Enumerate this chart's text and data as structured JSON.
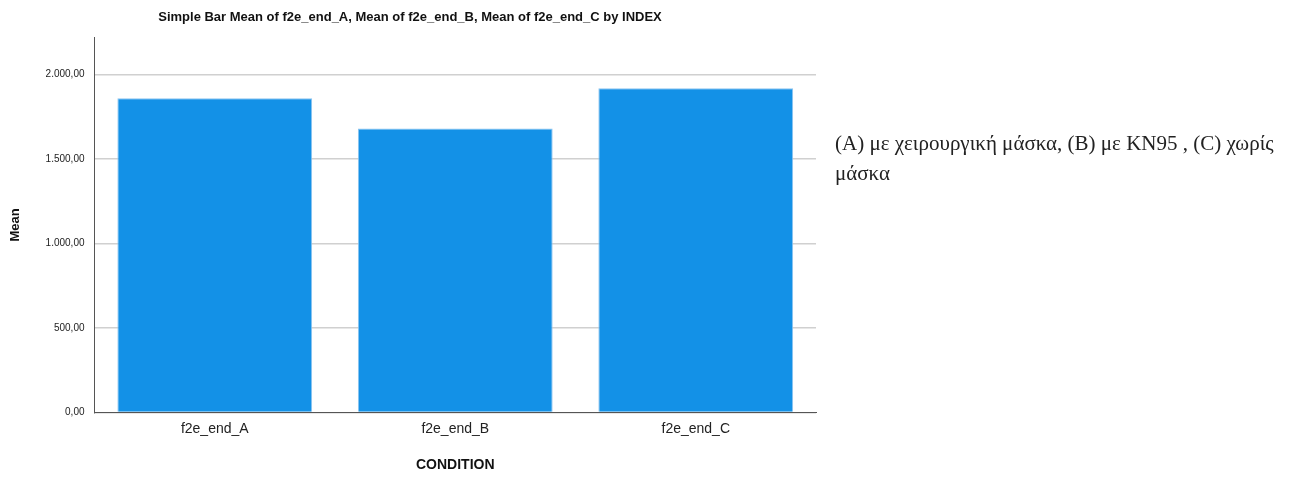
{
  "chart_data": {
    "type": "bar",
    "title": "Simple Bar Mean of f2e_end_A, Mean of f2e_end_B, Mean of f2e_end_C by INDEX",
    "xlabel": "CONDITION",
    "ylabel": "Mean",
    "categories": [
      "f2e_end_A",
      "f2e_end_B",
      "f2e_end_C"
    ],
    "values": [
      1861,
      1682,
      1920
    ],
    "color": "#1391e7",
    "ylim": [
      0,
      2220
    ],
    "yticks": [
      {
        "value": 0,
        "label": "0,00"
      },
      {
        "value": 500,
        "label": "500,00"
      },
      {
        "value": 1000,
        "label": "1.000,00"
      },
      {
        "value": 1500,
        "label": "1.500,00"
      },
      {
        "value": 2000,
        "label": "2.000,00"
      }
    ],
    "grid": "y",
    "legend": false,
    "annotations": [
      "(A) με χειρουργική μάσκα, (B) με KN95 , (C) χωρίς μάσκα"
    ]
  }
}
